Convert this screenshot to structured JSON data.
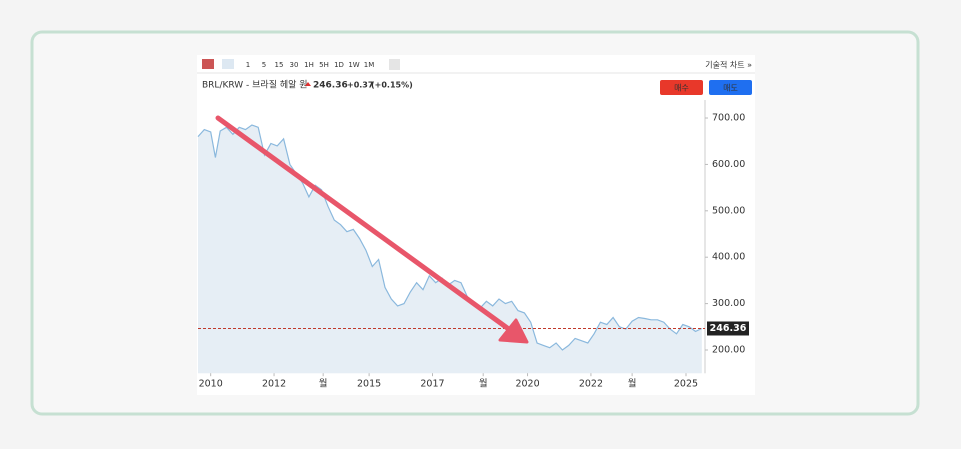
{
  "toolbar": {
    "intervals": [
      "1",
      "5",
      "15",
      "30",
      "1H",
      "5H",
      "1D",
      "1W",
      "1M"
    ],
    "chart_link": "기술적 차트 »"
  },
  "header": {
    "symbol": "BRL/KRW - 브라질 헤알 원",
    "change": "+0.37",
    "change_pct": "(+0.15%)"
  },
  "buttons": {
    "buy": "매수",
    "sell": "매도"
  },
  "chart_data": {
    "type": "area",
    "x": [
      2009.6,
      2009.8,
      2010.0,
      2010.15,
      2010.3,
      2010.5,
      2010.7,
      2010.9,
      2011.1,
      2011.3,
      2011.5,
      2011.7,
      2011.9,
      2012.1,
      2012.3,
      2012.5,
      2012.7,
      2012.9,
      2013.1,
      2013.3,
      2013.5,
      2013.7,
      2013.9,
      2014.1,
      2014.3,
      2014.5,
      2014.7,
      2014.9,
      2015.1,
      2015.3,
      2015.5,
      2015.7,
      2015.9,
      2016.1,
      2016.3,
      2016.5,
      2016.7,
      2016.9,
      2017.1,
      2017.3,
      2017.5,
      2017.7,
      2017.9,
      2018.1,
      2018.3,
      2018.5,
      2018.7,
      2018.9,
      2019.1,
      2019.3,
      2019.5,
      2019.7,
      2019.9,
      2020.1,
      2020.3,
      2020.5,
      2020.7,
      2020.9,
      2021.1,
      2021.3,
      2021.5,
      2021.7,
      2021.9,
      2022.1,
      2022.3,
      2022.5,
      2022.7,
      2022.9,
      2023.1,
      2023.3,
      2023.5,
      2023.7,
      2023.9,
      2024.1,
      2024.3,
      2024.5,
      2024.7,
      2024.9,
      2025.1,
      2025.3,
      2025.5
    ],
    "values": [
      660,
      675,
      670,
      615,
      672,
      680,
      665,
      680,
      675,
      685,
      680,
      620,
      645,
      640,
      655,
      600,
      580,
      560,
      530,
      555,
      545,
      510,
      480,
      470,
      455,
      460,
      440,
      415,
      380,
      395,
      335,
      310,
      295,
      300,
      325,
      345,
      330,
      360,
      345,
      355,
      340,
      350,
      345,
      315,
      300,
      290,
      305,
      295,
      310,
      300,
      305,
      285,
      280,
      260,
      215,
      210,
      205,
      215,
      200,
      210,
      225,
      220,
      215,
      235,
      260,
      255,
      270,
      250,
      245,
      262,
      270,
      268,
      265,
      265,
      260,
      245,
      235,
      255,
      250,
      240,
      246.36
    ],
    "color": "#8ab8dd",
    "last_value": 246.36,
    "xlim": [
      2009.6,
      2025.6
    ],
    "xticks": [
      2010,
      2012,
      {
        "value": 2013.55,
        "label": "월"
      },
      2015,
      2017,
      {
        "value": 2018.6,
        "label": "월"
      },
      2020,
      2022,
      {
        "value": 2023.3,
        "label": "월"
      },
      2025
    ],
    "ylim": [
      150,
      730
    ],
    "yticks": [
      {
        "value": 200,
        "label": "200.00"
      },
      {
        "value": 300,
        "label": "300.00"
      },
      {
        "value": 400,
        "label": "400.00"
      },
      {
        "value": 500,
        "label": "500.00"
      },
      {
        "value": 600,
        "label": "600.00"
      },
      {
        "value": 700,
        "label": "700.00"
      }
    ]
  }
}
